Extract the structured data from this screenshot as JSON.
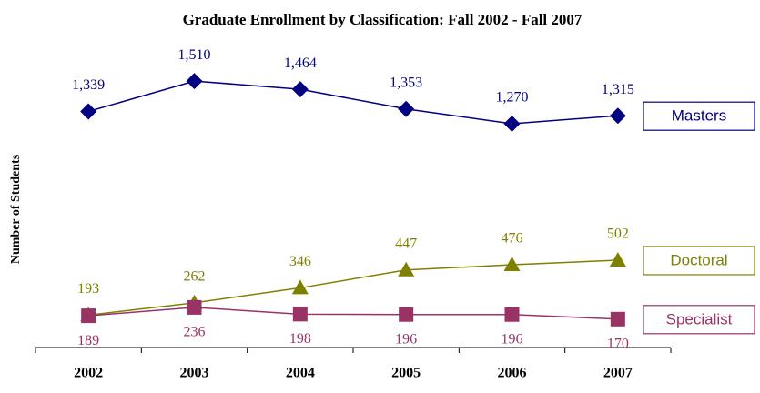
{
  "chart_data": {
    "type": "line",
    "title": "Graduate Enrollment by Classification:  Fall 2002 - Fall 2007",
    "y_label": "Number of Students",
    "categories": [
      "2002",
      "2003",
      "2004",
      "2005",
      "2006",
      "2007"
    ],
    "ylim": [
      0,
      1700
    ],
    "series": [
      {
        "name": "Masters",
        "color": "#000080",
        "marker": "diamond",
        "label_position": "above",
        "values": [
          1339,
          1510,
          1464,
          1353,
          1270,
          1315
        ],
        "value_labels": [
          "1,339",
          "1,510",
          "1,464",
          "1,353",
          "1,270",
          "1,315"
        ]
      },
      {
        "name": "Doctoral",
        "color": "#808000",
        "marker": "triangle",
        "label_position": "above",
        "values": [
          193,
          262,
          346,
          447,
          476,
          502
        ]
      },
      {
        "name": "Specialist",
        "color": "#993366",
        "marker": "square",
        "label_position": "below",
        "values": [
          189,
          236,
          198,
          196,
          196,
          170
        ]
      }
    ]
  }
}
